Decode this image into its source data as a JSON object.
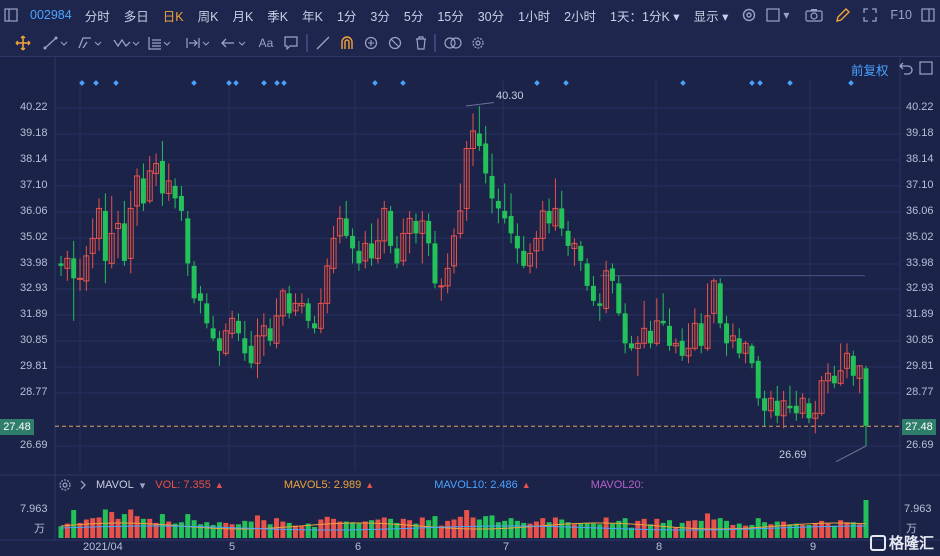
{
  "toolbar": {
    "stock_code": "002984",
    "periods": [
      "分时",
      "多日",
      "日K",
      "周K",
      "月K",
      "季K",
      "年K",
      "1分",
      "3分",
      "5分",
      "15分",
      "30分",
      "1小时",
      "2小时"
    ],
    "active_period": "日K",
    "interval_select": "1天：1分K",
    "display_select": "显示",
    "f10_label": "F10"
  },
  "drawing_tools": {
    "text_tool_label": "Aa"
  },
  "chart": {
    "adjust_label": "前复权",
    "price_ticks": [
      "40.22",
      "39.18",
      "38.14",
      "37.10",
      "36.06",
      "35.02",
      "33.98",
      "32.93",
      "31.89",
      "30.85",
      "29.81",
      "28.77",
      "27.48",
      "26.69"
    ],
    "current_price_tag": "27.48",
    "high_label": "40.30",
    "low_label": "26.69",
    "x_labels": [
      "2021/04",
      "5",
      "6",
      "7",
      "8",
      "9"
    ]
  },
  "volume": {
    "indicator_name": "MAVOL",
    "vol": "VOL: 7.355",
    "mavol5": "MAVOL5: 2.989",
    "mavol10": "MAVOL10: 2.486",
    "mavol20": "MAVOL20:",
    "axis_top": "7.963",
    "axis_unit": "万",
    "colors": {
      "vol": "#e8524a",
      "mavol5": "#f0a33b",
      "mavol10": "#4aa3ff",
      "mavol20": "#b760c9"
    }
  },
  "watermark": "格隆汇",
  "colors": {
    "up": "#e8524a",
    "down": "#22c15a",
    "background": "#1b2348",
    "accent": "#4aa3ff",
    "active": "#f0a33b"
  },
  "chart_data": {
    "type": "candlestick",
    "y_range": [
      26.4,
      40.6
    ],
    "candles": [
      [
        34.0,
        33.9,
        34.3,
        33.5
      ],
      [
        33.8,
        34.2,
        34.5,
        33.3
      ],
      [
        34.2,
        33.4,
        34.9,
        31.7
      ],
      [
        33.4,
        33.4,
        34.2,
        32.9
      ],
      [
        33.3,
        34.3,
        34.7,
        32.9
      ],
      [
        34.4,
        35.0,
        35.8,
        33.8
      ],
      [
        35.0,
        36.2,
        36.6,
        34.5
      ],
      [
        36.1,
        34.1,
        36.8,
        33.2
      ],
      [
        34.0,
        35.2,
        36.7,
        33.8
      ],
      [
        35.4,
        35.6,
        36.1,
        34.2
      ],
      [
        35.6,
        34.1,
        36.5,
        33.9
      ],
      [
        34.2,
        36.2,
        36.9,
        33.6
      ],
      [
        36.3,
        37.5,
        37.8,
        35.5
      ],
      [
        37.4,
        36.4,
        38.0,
        36.1
      ],
      [
        36.5,
        37.7,
        38.3,
        36.4
      ],
      [
        37.6,
        38.0,
        38.4,
        37.1
      ],
      [
        38.1,
        36.8,
        38.9,
        36.3
      ],
      [
        36.8,
        37.3,
        38.0,
        36.5
      ],
      [
        37.1,
        36.6,
        37.4,
        36.2
      ],
      [
        36.7,
        36.1,
        37.1,
        35.7
      ],
      [
        35.8,
        34.0,
        36.1,
        33.5
      ],
      [
        33.9,
        32.6,
        34.1,
        32.4
      ],
      [
        32.8,
        32.5,
        33.1,
        32.0
      ],
      [
        32.4,
        31.6,
        32.8,
        31.4
      ],
      [
        31.4,
        31.0,
        31.9,
        30.9
      ],
      [
        31.0,
        30.5,
        31.3,
        29.9
      ],
      [
        30.4,
        31.3,
        31.6,
        30.3
      ],
      [
        31.2,
        31.8,
        32.1,
        31.0
      ],
      [
        31.7,
        31.2,
        32.0,
        30.9
      ],
      [
        31.0,
        30.4,
        31.7,
        30.1
      ],
      [
        30.7,
        30.0,
        31.3,
        29.8
      ],
      [
        30.0,
        31.1,
        31.8,
        29.4
      ],
      [
        31.1,
        31.5,
        32.0,
        30.3
      ],
      [
        31.4,
        30.9,
        31.8,
        30.7
      ],
      [
        30.8,
        31.9,
        32.6,
        30.6
      ],
      [
        31.9,
        32.9,
        33.0,
        31.5
      ],
      [
        32.8,
        32.0,
        33.1,
        31.8
      ],
      [
        32.1,
        32.4,
        32.8,
        31.9
      ],
      [
        32.3,
        32.4,
        32.8,
        32.0
      ],
      [
        32.4,
        31.7,
        32.6,
        31.4
      ],
      [
        31.6,
        31.4,
        31.9,
        31.2
      ],
      [
        31.4,
        32.4,
        33.0,
        31.2
      ],
      [
        32.4,
        33.9,
        34.2,
        32.0
      ],
      [
        33.8,
        35.0,
        35.5,
        33.6
      ],
      [
        35.1,
        35.8,
        36.3,
        34.8
      ],
      [
        35.8,
        35.1,
        36.5,
        35.0
      ],
      [
        35.1,
        34.6,
        35.4,
        34.0
      ],
      [
        34.5,
        34.0,
        34.9,
        33.7
      ],
      [
        34.1,
        34.8,
        35.3,
        33.8
      ],
      [
        34.8,
        34.2,
        35.6,
        33.9
      ],
      [
        34.2,
        34.9,
        35.8,
        34.0
      ],
      [
        34.9,
        36.2,
        36.5,
        34.4
      ],
      [
        36.1,
        34.7,
        36.3,
        34.4
      ],
      [
        34.6,
        34.0,
        35.1,
        33.8
      ],
      [
        34.1,
        35.2,
        35.8,
        33.9
      ],
      [
        35.2,
        35.8,
        36.1,
        34.4
      ],
      [
        35.7,
        35.2,
        36.0,
        34.8
      ],
      [
        35.2,
        35.7,
        36.1,
        34.0
      ],
      [
        35.7,
        34.8,
        36.0,
        34.3
      ],
      [
        34.8,
        33.2,
        35.3,
        33.0
      ],
      [
        33.1,
        33.1,
        33.4,
        32.5
      ],
      [
        33.1,
        33.8,
        34.4,
        32.8
      ],
      [
        33.9,
        35.1,
        35.4,
        33.6
      ],
      [
        35.2,
        36.1,
        37.2,
        35.0
      ],
      [
        36.2,
        38.6,
        38.9,
        35.7
      ],
      [
        38.6,
        39.3,
        40.0,
        37.9
      ],
      [
        39.2,
        38.7,
        40.3,
        38.5
      ],
      [
        38.8,
        37.6,
        39.5,
        37.2
      ],
      [
        37.5,
        36.6,
        38.4,
        36.0
      ],
      [
        36.5,
        36.2,
        37.0,
        35.6
      ],
      [
        36.1,
        35.8,
        37.2,
        35.6
      ],
      [
        35.9,
        35.2,
        36.8,
        34.8
      ],
      [
        35.1,
        34.6,
        35.6,
        34.0
      ],
      [
        34.5,
        33.9,
        35.1,
        33.8
      ],
      [
        33.9,
        34.4,
        34.8,
        33.6
      ],
      [
        34.5,
        35.0,
        35.3,
        33.8
      ],
      [
        35.0,
        36.1,
        36.5,
        34.5
      ],
      [
        36.1,
        35.6,
        36.6,
        35.2
      ],
      [
        35.5,
        36.2,
        37.4,
        35.3
      ],
      [
        36.2,
        35.4,
        36.9,
        35.1
      ],
      [
        35.3,
        34.7,
        35.7,
        34.3
      ],
      [
        34.6,
        34.8,
        35.0,
        33.9
      ],
      [
        34.7,
        34.1,
        34.9,
        33.7
      ],
      [
        34.0,
        33.1,
        34.2,
        32.9
      ],
      [
        33.1,
        32.5,
        33.5,
        32.3
      ],
      [
        32.4,
        32.3,
        32.8,
        31.7
      ],
      [
        32.2,
        33.7,
        34.1,
        32.0
      ],
      [
        33.8,
        33.3,
        34.0,
        32.8
      ],
      [
        33.2,
        32.0,
        33.5,
        31.9
      ],
      [
        32.0,
        30.8,
        32.4,
        30.4
      ],
      [
        30.8,
        30.6,
        31.1,
        30.5
      ],
      [
        30.6,
        30.8,
        31.1,
        29.5
      ],
      [
        30.8,
        31.4,
        32.5,
        30.6
      ],
      [
        31.3,
        30.8,
        31.7,
        30.6
      ],
      [
        30.8,
        31.7,
        32.6,
        30.7
      ],
      [
        31.7,
        31.6,
        32.8,
        31.5
      ],
      [
        31.5,
        30.7,
        32.2,
        30.5
      ],
      [
        30.7,
        30.8,
        31.0,
        30.4
      ],
      [
        30.9,
        30.3,
        31.4,
        30.1
      ],
      [
        30.3,
        30.6,
        31.6,
        30.0
      ],
      [
        30.6,
        31.6,
        32.2,
        30.5
      ],
      [
        31.6,
        30.7,
        32.0,
        30.4
      ],
      [
        30.6,
        31.9,
        33.2,
        30.5
      ],
      [
        32.0,
        33.3,
        33.4,
        31.6
      ],
      [
        33.2,
        31.6,
        33.4,
        31.4
      ],
      [
        31.6,
        30.8,
        31.9,
        30.3
      ],
      [
        30.9,
        31.1,
        31.6,
        30.6
      ],
      [
        31.0,
        30.4,
        31.4,
        30.2
      ],
      [
        30.4,
        30.8,
        30.9,
        30.0
      ],
      [
        30.7,
        30.0,
        30.8,
        29.8
      ],
      [
        30.1,
        28.6,
        30.3,
        28.3
      ],
      [
        28.6,
        28.1,
        28.9,
        27.5
      ],
      [
        28.1,
        28.6,
        28.9,
        27.8
      ],
      [
        28.5,
        27.9,
        29.1,
        27.6
      ],
      [
        27.9,
        28.5,
        28.9,
        27.4
      ],
      [
        28.3,
        28.2,
        29.1,
        28.0
      ],
      [
        28.3,
        28.0,
        28.9,
        27.7
      ],
      [
        28.0,
        28.6,
        28.8,
        27.8
      ],
      [
        28.4,
        27.8,
        28.6,
        27.6
      ],
      [
        27.8,
        28.0,
        28.5,
        27.2
      ],
      [
        28.0,
        29.3,
        29.5,
        27.9
      ],
      [
        29.3,
        29.6,
        30.0,
        28.8
      ],
      [
        29.5,
        29.2,
        29.9,
        29.0
      ],
      [
        29.2,
        29.7,
        30.8,
        29.1
      ],
      [
        29.8,
        30.4,
        30.8,
        29.4
      ],
      [
        30.3,
        29.5,
        30.5,
        29.1
      ],
      [
        29.4,
        29.9,
        29.9,
        28.8
      ],
      [
        29.8,
        27.5,
        29.9,
        26.7
      ]
    ],
    "volume_max": 7.963,
    "mavol": {
      "vol": 7.355,
      "mavol5": 2.989,
      "mavol10": 2.486
    }
  }
}
